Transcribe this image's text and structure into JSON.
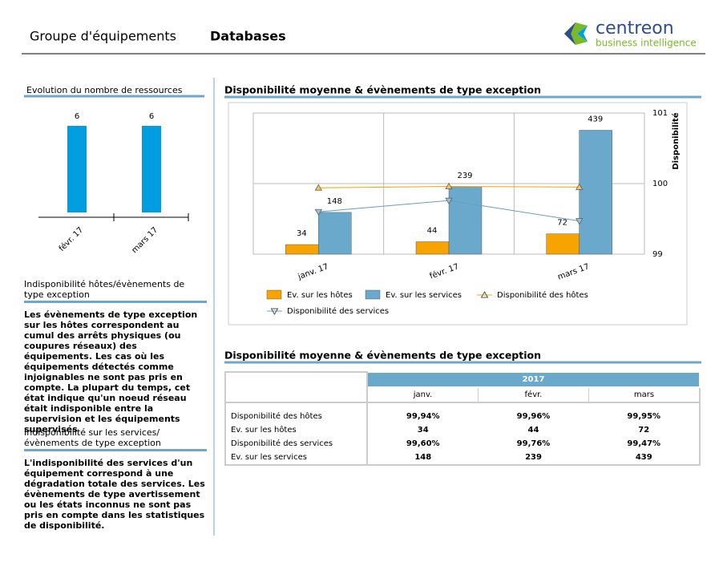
{
  "header": {
    "title_prefix": "Groupe d'équipements",
    "title_name": "Databases",
    "logo_name": "centreon",
    "logo_tagline": "business intelligence"
  },
  "chart_data": [
    {
      "type": "bar",
      "title": "Evolution du nombre de ressources",
      "categories": [
        "févr. 17",
        "mars 17"
      ],
      "values": [
        6,
        6
      ],
      "color": "#009ee0"
    },
    {
      "type": "combo",
      "title": "Disponibilité moyenne & évènements de type exception",
      "categories": [
        "janv. 17",
        "févr. 17",
        "mars 17"
      ],
      "ylim": [
        0,
        500
      ],
      "y2lim": [
        99,
        101
      ],
      "y2ticks": [
        99,
        100,
        101
      ],
      "y2label": "Disponibilité",
      "grid": true,
      "series": [
        {
          "name": "Ev. sur les hôtes",
          "type": "bar",
          "color": "#f7a400",
          "values": [
            34,
            44,
            72
          ]
        },
        {
          "name": "Ev. sur les services",
          "type": "bar",
          "color": "#6aa9cc",
          "values": [
            148,
            239,
            439
          ]
        },
        {
          "name": "Disponibilité des hôtes",
          "type": "line",
          "marker": "triangle-up",
          "axis": "y2",
          "color": "#f7a400",
          "values": [
            99.94,
            99.96,
            99.95
          ]
        },
        {
          "name": "Disponibilité des services",
          "type": "line",
          "marker": "triangle-down",
          "axis": "y2",
          "color": "#6a9cc0",
          "values": [
            99.6,
            99.76,
            99.47
          ]
        }
      ]
    }
  ],
  "sections": [
    {
      "heading": "Indisponibilité  hôtes/évènements de type exception",
      "body": "Les évènements de type exception sur les hôtes correspondent au cumul des arrêts physiques (ou coupures réseaux) des équipements. Les cas où les équipements détectés comme injoignables ne sont pas pris en compte. La plupart du temps, cet état indique qu'un noeud réseau était indisponible entre la supervision et les équipements supervisés"
    },
    {
      "heading": "Indisponibilité sur les services/ évènements de type exception",
      "body": "L'indisponibilité des services d'un équipement correspond à une dégradation totale des services. Les évènements de type avertissement ou les états inconnus ne sont pas pris en compte dans les statistiques de disponibilité."
    }
  ],
  "table": {
    "title": "Disponibilité moyenne & évènements de type exception",
    "year": "2017",
    "columns": [
      "janv.",
      "févr.",
      "mars"
    ],
    "rows": [
      [
        "Disponibilité des hôtes",
        "99,94%",
        "99,96%",
        "99,95%"
      ],
      [
        "Ev. sur les hôtes",
        "34",
        "44",
        "72"
      ],
      [
        "Disponibilité des services",
        "99,60%",
        "99,76%",
        "99,47%"
      ],
      [
        "Ev. sur les services",
        "148",
        "239",
        "439"
      ]
    ]
  }
}
